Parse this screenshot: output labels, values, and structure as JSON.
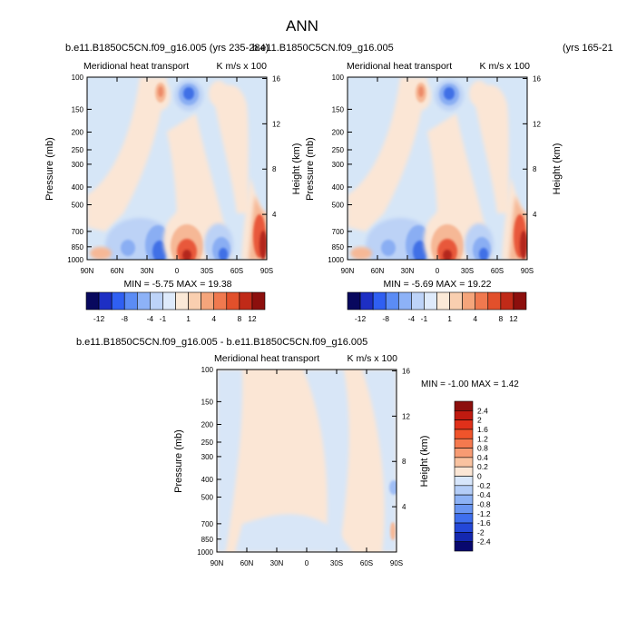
{
  "figure_title": "ANN",
  "chart_data": [
    {
      "type": "heatmap",
      "id": "top-left",
      "case_title": "b.e11.B1850C5CN.f09_g16.005 (yrs 235-284)",
      "subtitle_left": "Meridional heat transport",
      "subtitle_right": "K m/s x 100",
      "ylabel": "Pressure (mb)",
      "y2label": "Height (km)",
      "x_ticks": [
        "90N",
        "60N",
        "30N",
        "0",
        "30S",
        "60S",
        "90S"
      ],
      "y_ticks": [
        100,
        150,
        200,
        250,
        300,
        400,
        500,
        700,
        850,
        1000
      ],
      "y2_ticks": [
        16,
        12,
        8,
        4
      ],
      "stats": "MIN = -5.75  MAX = 19.38",
      "min": -5.75,
      "max": 19.38
    },
    {
      "type": "heatmap",
      "id": "top-right",
      "case_title": "b.e11.B1850C5CN.f09_g16.005",
      "years_label": "(yrs 165-21",
      "subtitle_left": "Meridional heat transport",
      "subtitle_right": "K m/s x 100",
      "ylabel": "Pressure (mb)",
      "y2label": "Height (km)",
      "x_ticks": [
        "90N",
        "60N",
        "30N",
        "0",
        "30S",
        "60S",
        "90S"
      ],
      "y_ticks": [
        100,
        150,
        200,
        250,
        300,
        400,
        500,
        700,
        850,
        1000
      ],
      "y2_ticks": [
        16,
        12,
        8,
        4
      ],
      "stats": "MIN = -5.69  MAX = 19.22",
      "min": -5.69,
      "max": 19.22
    },
    {
      "type": "heatmap",
      "id": "difference",
      "case_title": "b.e11.B1850C5CN.f09_g16.005 - b.e11.B1850C5CN.f09_g16.005",
      "subtitle_left": "Meridional heat transport",
      "subtitle_right": "K m/s x 100",
      "ylabel": "Pressure (mb)",
      "y2label": "Height (km)",
      "x_ticks": [
        "90N",
        "60N",
        "30N",
        "0",
        "30S",
        "60S",
        "90S"
      ],
      "y_ticks": [
        100,
        150,
        200,
        250,
        300,
        400,
        500,
        700,
        850,
        1000
      ],
      "y2_ticks": [
        16,
        12,
        8,
        4
      ],
      "stats": "MIN = -1.00  MAX =  1.42",
      "min": -1.0,
      "max": 1.42
    }
  ],
  "colorbar_main": {
    "labels": [
      "-12",
      "-8",
      "-4",
      "-1",
      "1",
      "4",
      "8",
      "12"
    ],
    "colors": [
      "#08085e",
      "#1d2fc4",
      "#2f5ff2",
      "#5b8cf5",
      "#8db2f7",
      "#bdd3f8",
      "#deeafb",
      "#fbe9d7",
      "#f9cfb0",
      "#f5a57b",
      "#f0794f",
      "#e2502b",
      "#c02a18",
      "#8c0f0d"
    ]
  },
  "colorbar_diff": {
    "labels": [
      "2.4",
      "2",
      "1.6",
      "1.2",
      "0.8",
      "0.4",
      "0.2",
      "0",
      "-0.2",
      "-0.4",
      "-0.8",
      "-1.2",
      "-1.6",
      "-2",
      "-2.4"
    ],
    "colors": [
      "#8c0f0d",
      "#c01a10",
      "#e0301a",
      "#f0542b",
      "#f5794e",
      "#f79b73",
      "#f9c2a0",
      "#fbe6d5",
      "#d7e6fb",
      "#b4cdf7",
      "#8db2f5",
      "#6a96f2",
      "#3f6fee",
      "#2448d8",
      "#1428b0",
      "#08086e"
    ]
  },
  "field_colors": {
    "background": "#d6e6f7",
    "weak_pos": "#fbe6d5",
    "mid_pos": "#f6b896",
    "strong_pos": "#e8593a",
    "max_pos": "#b3261a",
    "weak_neg": "#bcd2f6",
    "mid_neg": "#8aaef3",
    "strong_neg": "#3f6fe6",
    "max_neg": "#1f3fb8"
  }
}
